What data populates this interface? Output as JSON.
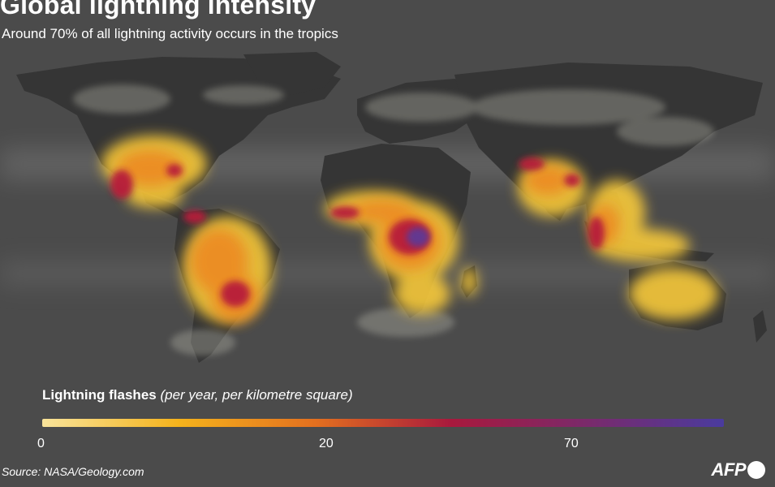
{
  "header": {
    "title": "Global lightning intensity",
    "subtitle": "Around 70% of all lightning activity occurs in the tropics"
  },
  "legend": {
    "title_main": "Lightning flashes",
    "title_detail": "(per year, per kilometre square)",
    "ticks": [
      {
        "label": "0"
      },
      {
        "label": "20"
      },
      {
        "label": "70"
      }
    ],
    "colors": [
      "#f8e39a",
      "#f5b31c",
      "#e3701f",
      "#a8193d",
      "#7a2a6b",
      "#4a3b9e"
    ]
  },
  "footer": {
    "source": "Source: NASA/Geology.com",
    "logo_text": "AFP"
  },
  "map": {
    "background_color": "#4b4b4b",
    "land_color": "#3a3a3a",
    "hotspots": [
      {
        "region": "North America / Gulf Coast",
        "level": "medium-high"
      },
      {
        "region": "Central America",
        "level": "high"
      },
      {
        "region": "South America - Amazon",
        "level": "medium"
      },
      {
        "region": "South America - Paraguay/Argentina",
        "level": "high"
      },
      {
        "region": "Central Africa - Congo Basin",
        "level": "very-high"
      },
      {
        "region": "West Africa",
        "level": "high"
      },
      {
        "region": "Southern Africa",
        "level": "medium"
      },
      {
        "region": "Madagascar",
        "level": "medium"
      },
      {
        "region": "Himalayan foothills / North India",
        "level": "high"
      },
      {
        "region": "Southeast Asia",
        "level": "high"
      },
      {
        "region": "Maritime Continent / Indonesia",
        "level": "high"
      },
      {
        "region": "Northern Australia",
        "level": "medium"
      }
    ]
  }
}
